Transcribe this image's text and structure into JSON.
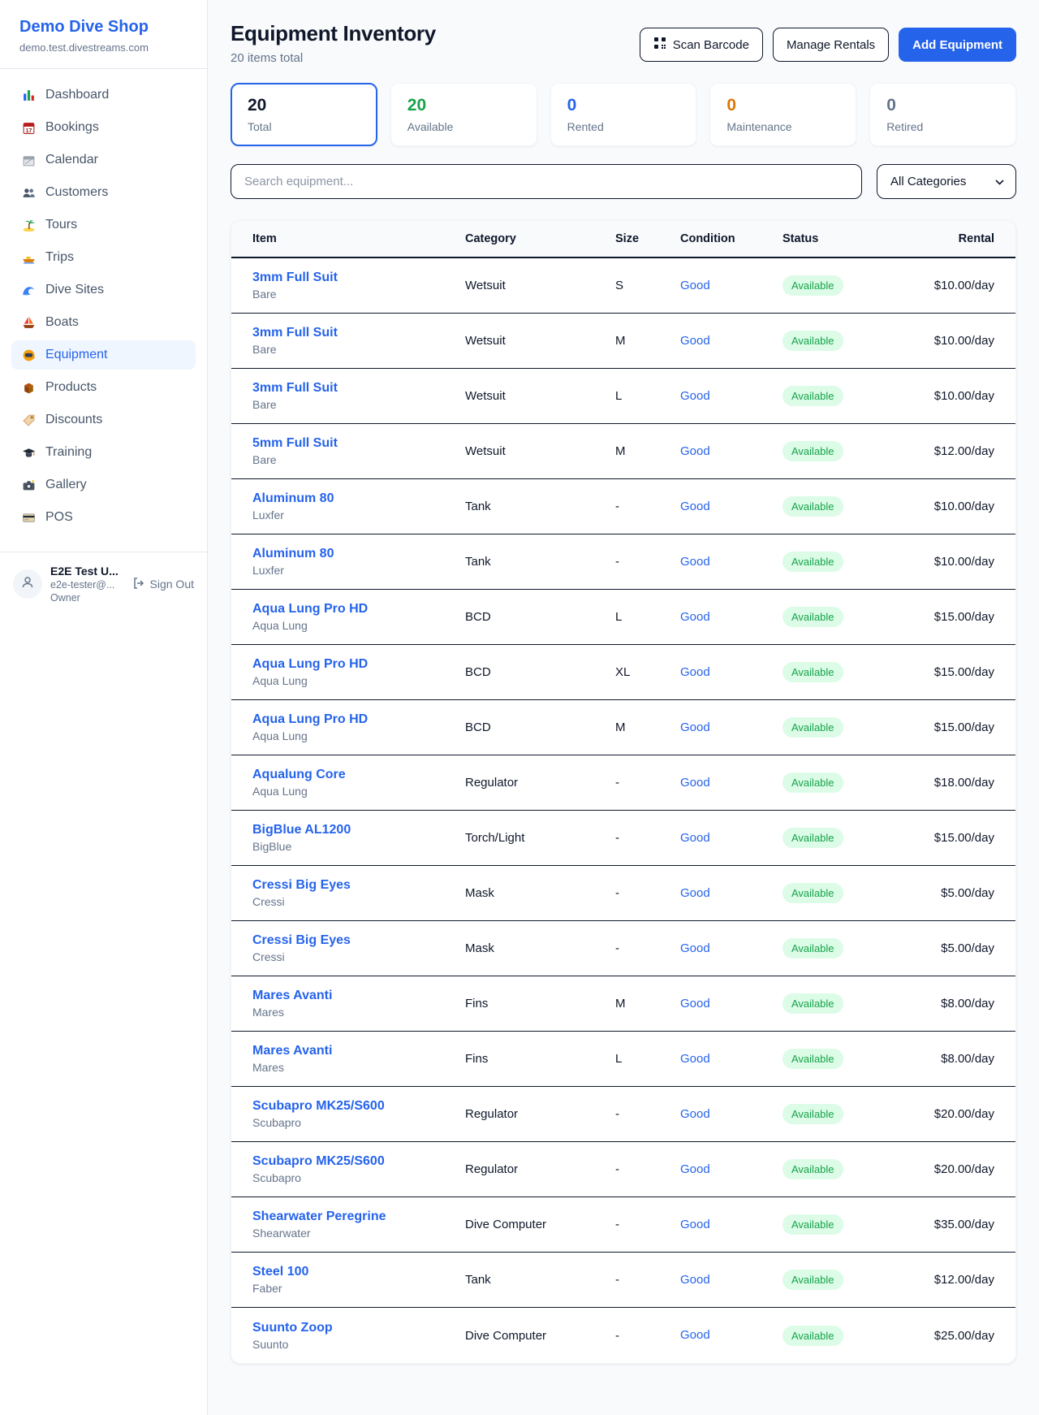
{
  "theme": {
    "accent": "#2563eb",
    "status_available_text": "#16a34a",
    "status_available_bg": "#dcfce7",
    "maintenance_color": "#d97706"
  },
  "sidebar": {
    "brand": "Demo Dive Shop",
    "domain": "demo.test.divestreams.com",
    "items": [
      {
        "icon": "dashboard",
        "label": "Dashboard",
        "active": false
      },
      {
        "icon": "bookings",
        "label": "Bookings",
        "active": false
      },
      {
        "icon": "calendar",
        "label": "Calendar",
        "active": false
      },
      {
        "icon": "customers",
        "label": "Customers",
        "active": false
      },
      {
        "icon": "tours",
        "label": "Tours",
        "active": false
      },
      {
        "icon": "trips",
        "label": "Trips",
        "active": false
      },
      {
        "icon": "dive-sites",
        "label": "Dive Sites",
        "active": false
      },
      {
        "icon": "boats",
        "label": "Boats",
        "active": false
      },
      {
        "icon": "equipment",
        "label": "Equipment",
        "active": true
      },
      {
        "icon": "products",
        "label": "Products",
        "active": false
      },
      {
        "icon": "discounts",
        "label": "Discounts",
        "active": false
      },
      {
        "icon": "training",
        "label": "Training",
        "active": false
      },
      {
        "icon": "gallery",
        "label": "Gallery",
        "active": false
      },
      {
        "icon": "pos",
        "label": "POS",
        "active": false
      }
    ],
    "user": {
      "name": "E2E Test U...",
      "email": "e2e-tester@...",
      "role": "Owner",
      "sign_out_label": "Sign Out"
    }
  },
  "header": {
    "title": "Equipment Inventory",
    "subtitle": "20 items total",
    "scan_barcode_label": "Scan Barcode",
    "manage_rentals_label": "Manage Rentals",
    "add_equipment_label": "Add Equipment"
  },
  "stats": [
    {
      "value": "20",
      "label": "Total",
      "color": "#0f172a",
      "active": true
    },
    {
      "value": "20",
      "label": "Available",
      "color": "#16a34a",
      "active": false
    },
    {
      "value": "0",
      "label": "Rented",
      "color": "#2563eb",
      "active": false
    },
    {
      "value": "0",
      "label": "Maintenance",
      "color": "#d97706",
      "active": false
    },
    {
      "value": "0",
      "label": "Retired",
      "color": "#64748b",
      "active": false
    }
  ],
  "filters": {
    "search_placeholder": "Search equipment...",
    "category_selected": "All Categories"
  },
  "table": {
    "columns": [
      "Item",
      "Category",
      "Size",
      "Condition",
      "Status",
      "Rental"
    ],
    "rows": [
      {
        "name": "3mm Full Suit",
        "brand": "Bare",
        "category": "Wetsuit",
        "size": "S",
        "condition": "Good",
        "status": "Available",
        "rental": "$10.00/day"
      },
      {
        "name": "3mm Full Suit",
        "brand": "Bare",
        "category": "Wetsuit",
        "size": "M",
        "condition": "Good",
        "status": "Available",
        "rental": "$10.00/day"
      },
      {
        "name": "3mm Full Suit",
        "brand": "Bare",
        "category": "Wetsuit",
        "size": "L",
        "condition": "Good",
        "status": "Available",
        "rental": "$10.00/day"
      },
      {
        "name": "5mm Full Suit",
        "brand": "Bare",
        "category": "Wetsuit",
        "size": "M",
        "condition": "Good",
        "status": "Available",
        "rental": "$12.00/day"
      },
      {
        "name": "Aluminum 80",
        "brand": "Luxfer",
        "category": "Tank",
        "size": "-",
        "condition": "Good",
        "status": "Available",
        "rental": "$10.00/day"
      },
      {
        "name": "Aluminum 80",
        "brand": "Luxfer",
        "category": "Tank",
        "size": "-",
        "condition": "Good",
        "status": "Available",
        "rental": "$10.00/day"
      },
      {
        "name": "Aqua Lung Pro HD",
        "brand": "Aqua Lung",
        "category": "BCD",
        "size": "L",
        "condition": "Good",
        "status": "Available",
        "rental": "$15.00/day"
      },
      {
        "name": "Aqua Lung Pro HD",
        "brand": "Aqua Lung",
        "category": "BCD",
        "size": "XL",
        "condition": "Good",
        "status": "Available",
        "rental": "$15.00/day"
      },
      {
        "name": "Aqua Lung Pro HD",
        "brand": "Aqua Lung",
        "category": "BCD",
        "size": "M",
        "condition": "Good",
        "status": "Available",
        "rental": "$15.00/day"
      },
      {
        "name": "Aqualung Core",
        "brand": "Aqua Lung",
        "category": "Regulator",
        "size": "-",
        "condition": "Good",
        "status": "Available",
        "rental": "$18.00/day"
      },
      {
        "name": "BigBlue AL1200",
        "brand": "BigBlue",
        "category": "Torch/Light",
        "size": "-",
        "condition": "Good",
        "status": "Available",
        "rental": "$15.00/day"
      },
      {
        "name": "Cressi Big Eyes",
        "brand": "Cressi",
        "category": "Mask",
        "size": "-",
        "condition": "Good",
        "status": "Available",
        "rental": "$5.00/day"
      },
      {
        "name": "Cressi Big Eyes",
        "brand": "Cressi",
        "category": "Mask",
        "size": "-",
        "condition": "Good",
        "status": "Available",
        "rental": "$5.00/day"
      },
      {
        "name": "Mares Avanti",
        "brand": "Mares",
        "category": "Fins",
        "size": "M",
        "condition": "Good",
        "status": "Available",
        "rental": "$8.00/day"
      },
      {
        "name": "Mares Avanti",
        "brand": "Mares",
        "category": "Fins",
        "size": "L",
        "condition": "Good",
        "status": "Available",
        "rental": "$8.00/day"
      },
      {
        "name": "Scubapro MK25/S600",
        "brand": "Scubapro",
        "category": "Regulator",
        "size": "-",
        "condition": "Good",
        "status": "Available",
        "rental": "$20.00/day"
      },
      {
        "name": "Scubapro MK25/S600",
        "brand": "Scubapro",
        "category": "Regulator",
        "size": "-",
        "condition": "Good",
        "status": "Available",
        "rental": "$20.00/day"
      },
      {
        "name": "Shearwater Peregrine",
        "brand": "Shearwater",
        "category": "Dive Computer",
        "size": "-",
        "condition": "Good",
        "status": "Available",
        "rental": "$35.00/day"
      },
      {
        "name": "Steel 100",
        "brand": "Faber",
        "category": "Tank",
        "size": "-",
        "condition": "Good",
        "status": "Available",
        "rental": "$12.00/day"
      },
      {
        "name": "Suunto Zoop",
        "brand": "Suunto",
        "category": "Dive Computer",
        "size": "-",
        "condition": "Good",
        "status": "Available",
        "rental": "$25.00/day"
      }
    ]
  }
}
